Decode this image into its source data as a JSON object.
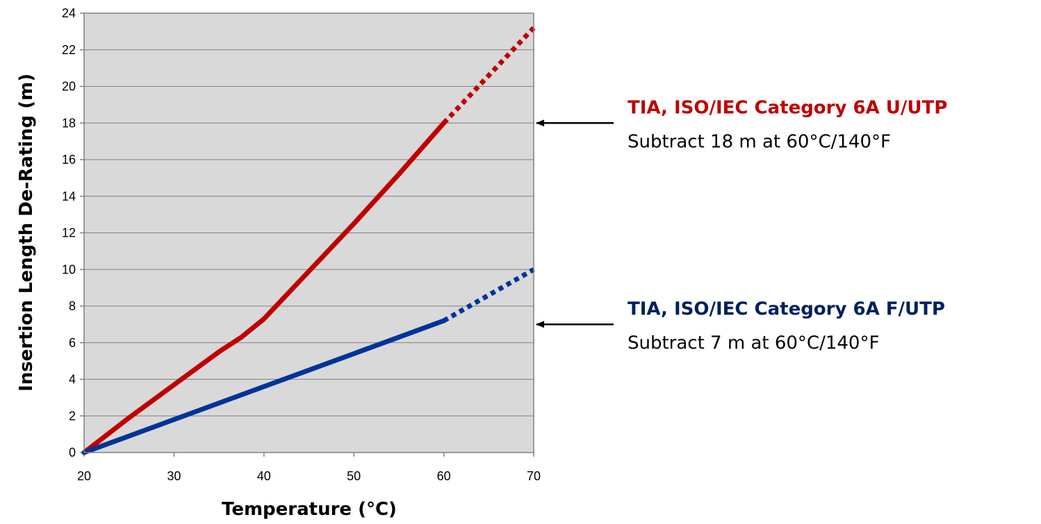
{
  "chart_data": {
    "type": "line",
    "xlabel": "Temperature (°C)",
    "ylabel": "Insertion Length De-Rating (m)",
    "xlim": [
      20,
      70
    ],
    "ylim": [
      0,
      24
    ],
    "x_ticks": [
      20,
      30,
      40,
      50,
      60,
      70
    ],
    "y_ticks": [
      0,
      2,
      4,
      6,
      8,
      10,
      12,
      14,
      16,
      18,
      20,
      22,
      24
    ],
    "grid": "horizontal",
    "plot_background": "#d9d9d9",
    "series": [
      {
        "color": "#c00000",
        "solid": [
          [
            20,
            0
          ],
          [
            25,
            1.9
          ],
          [
            30,
            3.7
          ],
          [
            35,
            5.5
          ],
          [
            37.5,
            6.3
          ],
          [
            40,
            7.3
          ],
          [
            45,
            9.9
          ],
          [
            50,
            12.5
          ],
          [
            55,
            15.2
          ],
          [
            60,
            18.0
          ]
        ],
        "dotted": [
          [
            60,
            18.0
          ],
          [
            65,
            20.6
          ],
          [
            70,
            23.2
          ]
        ]
      },
      {
        "color": "#003399",
        "solid": [
          [
            20,
            0
          ],
          [
            30,
            1.8
          ],
          [
            40,
            3.6
          ],
          [
            50,
            5.4
          ],
          [
            60,
            7.2
          ]
        ],
        "dotted": [
          [
            60,
            7.2
          ],
          [
            70,
            10.0
          ]
        ]
      }
    ],
    "annotations": [
      {
        "title": "TIA, ISO/IEC Category 6A U/UTP",
        "subtitle": "Subtract 18 m at 60°C/140°F",
        "color": "#c00000",
        "arrow_y": 18
      },
      {
        "title": "TIA, ISO/IEC Category 6A F/UTP",
        "subtitle": "Subtract 7 m at 60°C/140°F",
        "color": "#002060",
        "arrow_y": 7
      }
    ]
  }
}
